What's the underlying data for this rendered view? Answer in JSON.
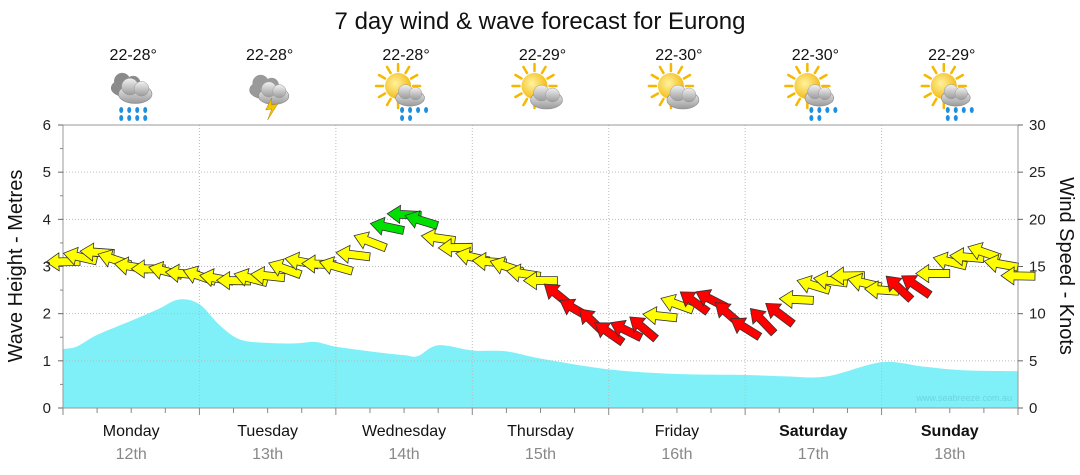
{
  "chart_data": {
    "type": "area",
    "title": "7 day wind & wave forecast for Eurong",
    "ylabel": "Wave Height - Metres",
    "y2label": "Wind Speed - Knots",
    "ylim": [
      0,
      6
    ],
    "y2lim": [
      0,
      30
    ],
    "yticks": [
      "0",
      "1",
      "2",
      "3",
      "4",
      "5",
      "6"
    ],
    "y2ticks": [
      "0",
      "5",
      "10",
      "15",
      "20",
      "25",
      "30"
    ],
    "watermark": "www.seabreeze.com.au",
    "days": [
      {
        "name": "Monday",
        "date": "12th",
        "temp": "22-28°",
        "icon": "rain-cloud-icon",
        "weekend": false
      },
      {
        "name": "Tuesday",
        "date": "13th",
        "temp": "22-28°",
        "icon": "storm-cloud-icon",
        "weekend": false
      },
      {
        "name": "Wednesday",
        "date": "14th",
        "temp": "22-28°",
        "icon": "sun-rain-icon",
        "weekend": false
      },
      {
        "name": "Thursday",
        "date": "15th",
        "temp": "22-29°",
        "icon": "sun-cloud-icon",
        "weekend": false
      },
      {
        "name": "Friday",
        "date": "16th",
        "temp": "22-30°",
        "icon": "sun-cloud-icon",
        "weekend": false
      },
      {
        "name": "Saturday",
        "date": "17th",
        "temp": "22-30°",
        "icon": "sun-rain-icon",
        "weekend": true
      },
      {
        "name": "Sunday",
        "date": "18th",
        "temp": "22-29°",
        "icon": "sun-rain-icon",
        "weekend": true
      }
    ],
    "wave_height_m": {
      "t_days": [
        0,
        0.1,
        0.25,
        0.5,
        0.7,
        0.85,
        1.0,
        1.15,
        1.3,
        1.5,
        1.7,
        1.85,
        2.0,
        2.25,
        2.5,
        2.6,
        2.75,
        3.0,
        3.25,
        3.5,
        4.0,
        4.5,
        5.0,
        5.3,
        5.6,
        6.0,
        6.3,
        6.6,
        7.0
      ],
      "values": [
        1.25,
        1.3,
        1.55,
        1.85,
        2.1,
        2.3,
        2.2,
        1.75,
        1.45,
        1.38,
        1.37,
        1.4,
        1.3,
        1.2,
        1.12,
        1.1,
        1.33,
        1.22,
        1.2,
        1.05,
        0.82,
        0.72,
        0.7,
        0.67,
        0.67,
        0.97,
        0.88,
        0.8,
        0.78
      ]
    },
    "wind_knots": {
      "t_days": [
        0,
        0.25,
        0.5,
        0.75,
        1.0,
        1.25,
        1.5,
        1.75,
        2.0,
        2.2,
        2.4,
        2.55,
        2.75,
        3.0,
        3.25,
        3.5,
        3.75,
        4.0,
        4.25,
        4.5,
        4.75,
        5.0,
        5.25,
        5.5,
        5.75,
        6.0,
        6.25,
        6.5,
        6.75,
        7.0
      ],
      "values": [
        15.5,
        16.5,
        15,
        14.5,
        14,
        13.5,
        14,
        15.5,
        15,
        17,
        19.5,
        21,
        18,
        16,
        15,
        13.5,
        10.5,
        8,
        8.5,
        11,
        11.5,
        8.5,
        10,
        13,
        14,
        12.5,
        13,
        15.5,
        16.5,
        14
      ],
      "arrow_color": [
        "yellow",
        "yellow",
        "yellow",
        "yellow",
        "yellow",
        "yellow",
        "yellow",
        "yellow",
        "yellow",
        "yellow",
        "green",
        "green",
        "yellow",
        "yellow",
        "yellow",
        "yellow",
        "red",
        "red",
        "red",
        "yellow",
        "red",
        "red",
        "red",
        "yellow",
        "yellow",
        "yellow",
        "red",
        "yellow",
        "yellow",
        "yellow"
      ]
    },
    "colors": {
      "wave_fill": "#7ff0f8",
      "wind_light": "#ffff00",
      "wind_strong": "#00e000",
      "wind_offshore": "#ff0000",
      "grid": "#bbbbbb"
    }
  }
}
